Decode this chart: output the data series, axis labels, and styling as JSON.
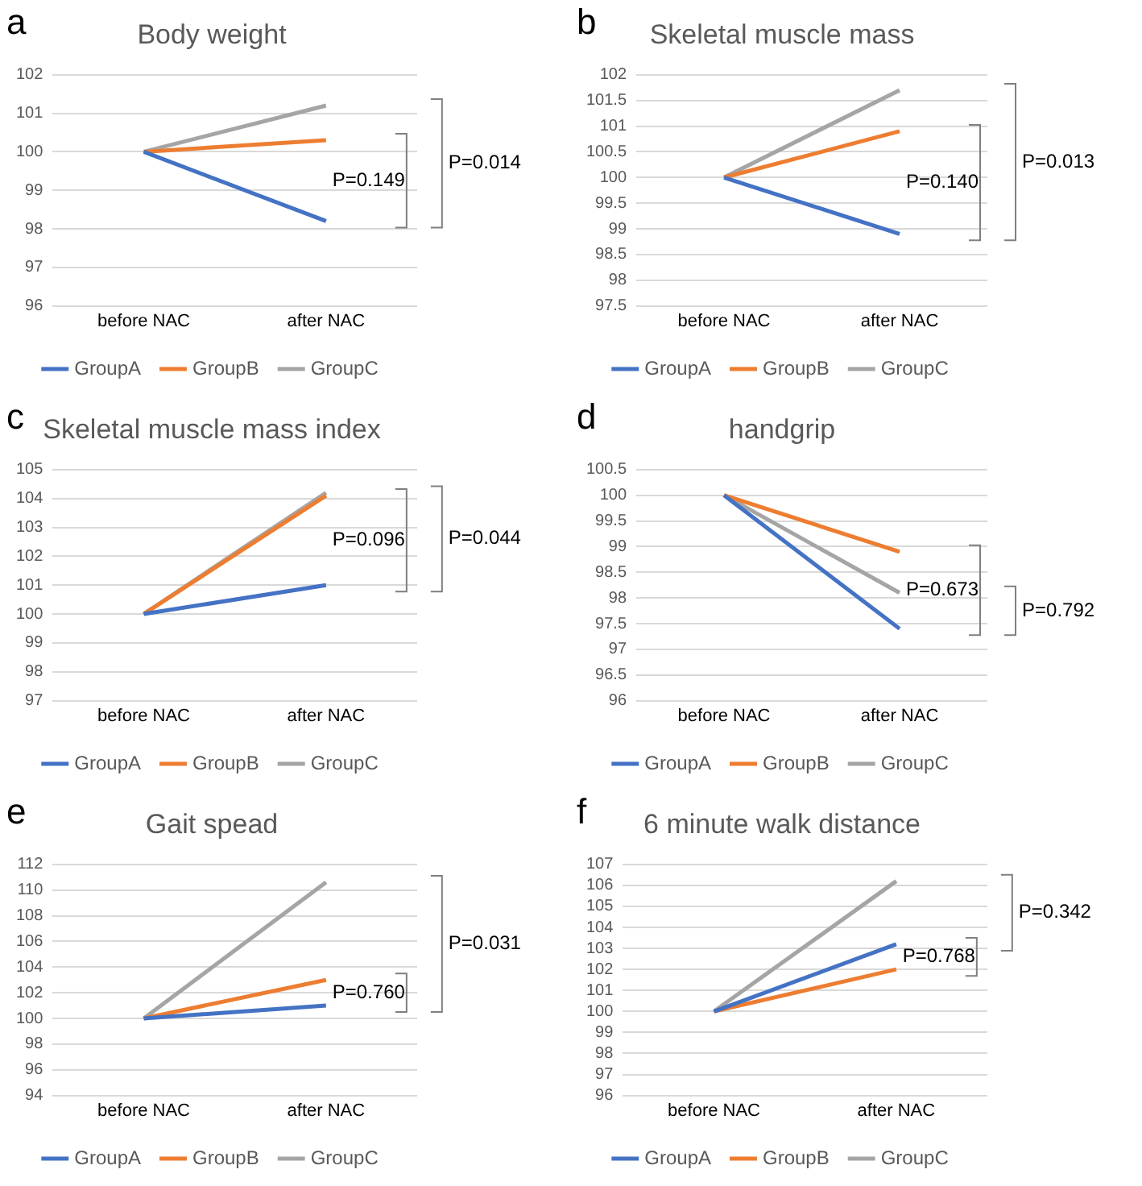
{
  "chart_data": [
    {
      "type": "line",
      "title": "Body weight",
      "categories": [
        "before NAC",
        "after NAC"
      ],
      "ylim": [
        96,
        102
      ],
      "yticks": [
        96,
        97,
        98,
        99,
        100,
        101,
        102
      ],
      "grid": "y",
      "legend": "bottom",
      "series": [
        {
          "name": "GroupA",
          "color": "#4472c4",
          "values": [
            100,
            98.2
          ]
        },
        {
          "name": "GroupB",
          "color": "#ed7d31",
          "values": [
            100,
            100.3
          ]
        },
        {
          "name": "GroupC",
          "color": "#a5a5a5",
          "values": [
            100,
            101.2
          ]
        }
      ],
      "annotations": [
        "a",
        "P=0.149",
        "P=0.014"
      ]
    },
    {
      "type": "line",
      "title": "Skeletal muscle mass",
      "categories": [
        "before NAC",
        "after NAC"
      ],
      "ylim": [
        97.5,
        102
      ],
      "yticks": [
        97.5,
        98,
        98.5,
        99,
        99.5,
        100,
        100.5,
        101,
        101.5,
        102
      ],
      "grid": "y",
      "legend": "bottom",
      "series": [
        {
          "name": "GroupA",
          "color": "#4472c4",
          "values": [
            100,
            98.9
          ]
        },
        {
          "name": "GroupB",
          "color": "#ed7d31",
          "values": [
            100,
            100.9
          ]
        },
        {
          "name": "GroupC",
          "color": "#a5a5a5",
          "values": [
            100,
            101.7
          ]
        }
      ],
      "annotations": [
        "b",
        "P=0.140",
        "P=0.013"
      ]
    },
    {
      "type": "line",
      "title": "Skeletal muscle mass index",
      "categories": [
        "before NAC",
        "after NAC"
      ],
      "ylim": [
        97,
        105
      ],
      "yticks": [
        97,
        98,
        99,
        100,
        101,
        102,
        103,
        104,
        105
      ],
      "grid": "y",
      "legend": "bottom",
      "series": [
        {
          "name": "GroupA",
          "color": "#4472c4",
          "values": [
            100,
            101
          ]
        },
        {
          "name": "GroupB",
          "color": "#ed7d31",
          "values": [
            100,
            104.1
          ]
        },
        {
          "name": "GroupC",
          "color": "#a5a5a5",
          "values": [
            100,
            104.2
          ]
        }
      ],
      "annotations": [
        "c",
        "P=0.096",
        "P=0.044"
      ]
    },
    {
      "type": "line",
      "title": "handgrip",
      "categories": [
        "before NAC",
        "after NAC"
      ],
      "ylim": [
        96,
        100.5
      ],
      "yticks": [
        96,
        96.5,
        97,
        97.5,
        98,
        98.5,
        99,
        99.5,
        100,
        100.5
      ],
      "grid": "y",
      "legend": "bottom",
      "series": [
        {
          "name": "GroupA",
          "color": "#4472c4",
          "values": [
            100,
            97.4
          ]
        },
        {
          "name": "GroupB",
          "color": "#ed7d31",
          "values": [
            100,
            98.9
          ]
        },
        {
          "name": "GroupC",
          "color": "#a5a5a5",
          "values": [
            100,
            98.1
          ]
        }
      ],
      "annotations": [
        "d",
        "P=0.673",
        "P=0.792"
      ]
    },
    {
      "type": "line",
      "title": "Gait spead",
      "categories": [
        "before NAC",
        "after NAC"
      ],
      "ylim": [
        94,
        112
      ],
      "yticks": [
        94,
        96,
        98,
        100,
        102,
        104,
        106,
        108,
        110,
        112
      ],
      "grid": "y",
      "legend": "bottom",
      "series": [
        {
          "name": "GroupA",
          "color": "#4472c4",
          "values": [
            100,
            101
          ]
        },
        {
          "name": "GroupB",
          "color": "#ed7d31",
          "values": [
            100,
            103
          ]
        },
        {
          "name": "GroupC",
          "color": "#a5a5a5",
          "values": [
            100,
            110.6
          ]
        }
      ],
      "annotations": [
        "e",
        "P=0.760",
        "P=0.031"
      ]
    },
    {
      "type": "line",
      "title": "6 minute walk distance",
      "categories": [
        "before NAC",
        "after NAC"
      ],
      "ylim": [
        96,
        107
      ],
      "yticks": [
        96,
        97,
        98,
        99,
        100,
        101,
        102,
        103,
        104,
        105,
        106,
        107
      ],
      "grid": "y",
      "legend": "bottom",
      "series": [
        {
          "name": "GroupA",
          "color": "#4472c4",
          "values": [
            100,
            103.2
          ]
        },
        {
          "name": "GroupB",
          "color": "#ed7d31",
          "values": [
            100,
            102
          ]
        },
        {
          "name": "GroupC",
          "color": "#a5a5a5",
          "values": [
            100,
            106.2
          ]
        }
      ],
      "annotations": [
        "f",
        "P=0.768",
        "P=0.342"
      ]
    }
  ]
}
